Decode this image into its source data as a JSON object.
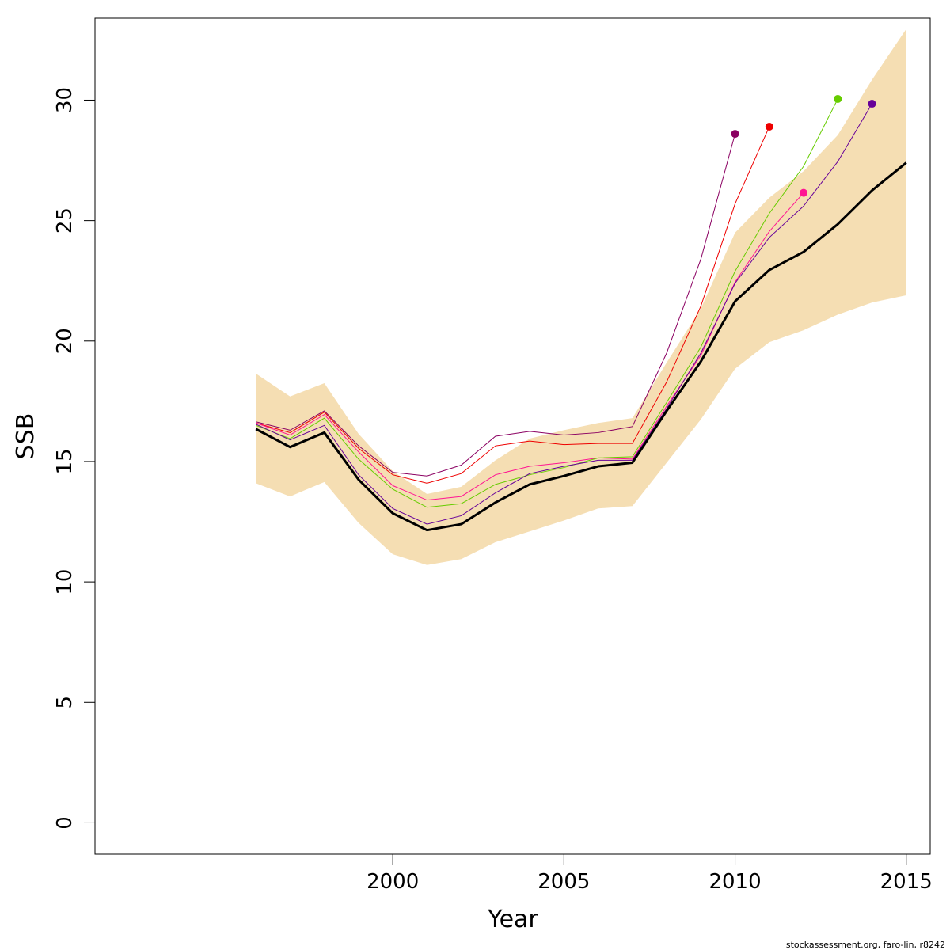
{
  "chart_data": {
    "type": "line",
    "title": "",
    "xlabel": "Year",
    "ylabel": "SSB",
    "xlim": [
      1991.3,
      2015.7
    ],
    "ylim": [
      -1.3,
      33.4
    ],
    "xticks": [
      2000,
      2005,
      2010,
      2015
    ],
    "yticks": [
      0,
      5,
      10,
      15,
      20,
      25,
      30
    ],
    "grid": false,
    "legend": "none",
    "confidence_band": {
      "color": "#f5deb3",
      "x": [
        1996,
        1997,
        1998,
        1999,
        2000,
        2001,
        2002,
        2003,
        2004,
        2005,
        2006,
        2007,
        2008,
        2009,
        2010,
        2011,
        2012,
        2013,
        2014,
        2015
      ],
      "lower": [
        14.1,
        13.55,
        14.15,
        12.45,
        11.15,
        10.7,
        10.95,
        11.65,
        12.1,
        12.55,
        13.05,
        13.15,
        14.95,
        16.75,
        18.85,
        19.95,
        20.45,
        21.1,
        21.6,
        21.9
      ],
      "upper": [
        18.65,
        17.7,
        18.25,
        16.15,
        14.6,
        13.65,
        13.95,
        15.05,
        15.95,
        16.3,
        16.6,
        16.8,
        19.1,
        21.35,
        24.5,
        25.95,
        27.05,
        28.55,
        30.85,
        32.95
      ]
    },
    "estimate": {
      "color": "#000000",
      "x": [
        1996,
        1997,
        1998,
        1999,
        2000,
        2001,
        2002,
        2003,
        2004,
        2005,
        2006,
        2007,
        2008,
        2009,
        2010,
        2011,
        2012,
        2013,
        2014,
        2015
      ],
      "values": [
        16.35,
        15.6,
        16.2,
        14.25,
        12.85,
        12.15,
        12.4,
        13.3,
        14.05,
        14.4,
        14.8,
        14.95,
        17.1,
        19.15,
        21.65,
        22.95,
        23.7,
        24.85,
        26.25,
        27.4
      ]
    },
    "series": [
      {
        "color": "#8b0062",
        "x": [
          1996,
          1997,
          1998,
          1999,
          2000,
          2001,
          2002,
          2003,
          2004,
          2005,
          2006,
          2007,
          2008,
          2009,
          2010
        ],
        "values": [
          16.65,
          16.3,
          17.1,
          15.65,
          14.55,
          14.4,
          14.85,
          16.05,
          16.25,
          16.1,
          16.2,
          16.45,
          19.5,
          23.4,
          28.6
        ]
      },
      {
        "color": "#ee0000",
        "x": [
          1996,
          1997,
          1998,
          1999,
          2000,
          2001,
          2002,
          2003,
          2004,
          2005,
          2006,
          2007,
          2008,
          2009,
          2010,
          2011
        ],
        "values": [
          16.6,
          16.2,
          17.05,
          15.55,
          14.45,
          14.1,
          14.5,
          15.65,
          15.85,
          15.7,
          15.75,
          15.75,
          18.3,
          21.45,
          25.7,
          28.9
        ]
      },
      {
        "color": "#ff1493",
        "x": [
          1996,
          1997,
          1998,
          1999,
          2000,
          2001,
          2002,
          2003,
          2004,
          2005,
          2006,
          2007,
          2008,
          2009,
          2010,
          2011,
          2012
        ],
        "values": [
          16.6,
          16.1,
          16.95,
          15.4,
          14.0,
          13.4,
          13.55,
          14.45,
          14.8,
          14.95,
          15.15,
          15.1,
          17.3,
          19.4,
          22.45,
          24.55,
          26.15
        ]
      },
      {
        "color": "#66cc00",
        "x": [
          1996,
          1997,
          1998,
          1999,
          2000,
          2001,
          2002,
          2003,
          2004,
          2005,
          2006,
          2007,
          2008,
          2009,
          2010,
          2011,
          2012,
          2013
        ],
        "values": [
          16.5,
          15.95,
          16.8,
          15.1,
          13.85,
          13.1,
          13.25,
          14.05,
          14.45,
          14.75,
          15.15,
          15.2,
          17.45,
          19.75,
          22.9,
          25.3,
          27.25,
          30.05
        ]
      },
      {
        "color": "#660099",
        "x": [
          1996,
          1997,
          1998,
          1999,
          2000,
          2001,
          2002,
          2003,
          2004,
          2005,
          2006,
          2007,
          2008,
          2009,
          2010,
          2011,
          2012,
          2013,
          2014
        ],
        "values": [
          16.55,
          15.9,
          16.5,
          14.45,
          13.05,
          12.4,
          12.75,
          13.7,
          14.5,
          14.8,
          15.05,
          15.05,
          17.2,
          19.5,
          22.4,
          24.3,
          25.6,
          27.45,
          29.85
        ]
      }
    ]
  },
  "footer": {
    "text": "stockassessment.org, faro-lin, r8242"
  }
}
